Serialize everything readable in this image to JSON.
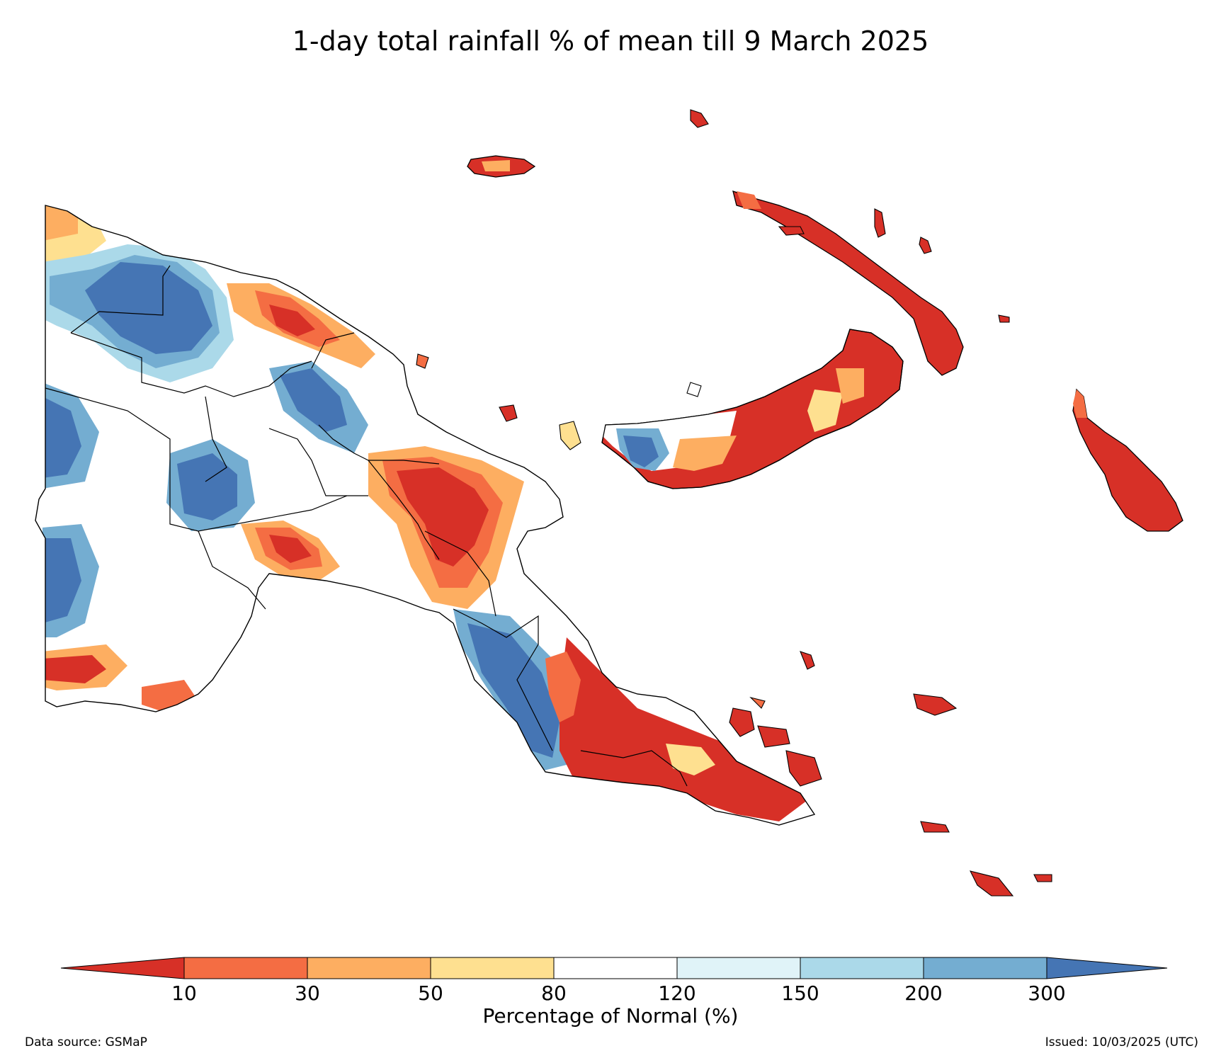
{
  "title": "1-day total rainfall % of mean till 9 March 2025",
  "colorbar": {
    "title": "Percentage of Normal (%)",
    "levels": [
      "10",
      "30",
      "50",
      "80",
      "120",
      "150",
      "200",
      "300"
    ],
    "colors": [
      "#d73027",
      "#f46d43",
      "#fdae61",
      "#fee090",
      "#ffffff",
      "#e0f3f8",
      "#abd9e9",
      "#74add1",
      "#4575b4"
    ]
  },
  "footer": {
    "source": "Data source: GSMaP",
    "issued": "Issued: 10/03/2025 (UTC)"
  },
  "map_regions": [
    {
      "name": "mainland-west",
      "category": "mixed"
    },
    {
      "name": "highlands",
      "category": "mixed"
    },
    {
      "name": "papuan-peninsula",
      "category": "mixed"
    },
    {
      "name": "new-britain",
      "category": "dry"
    },
    {
      "name": "new-ireland",
      "category": "dry"
    },
    {
      "name": "bougainville",
      "category": "dry"
    },
    {
      "name": "manus",
      "category": "dry"
    },
    {
      "name": "milne-bay-islands",
      "category": "dry"
    }
  ]
}
